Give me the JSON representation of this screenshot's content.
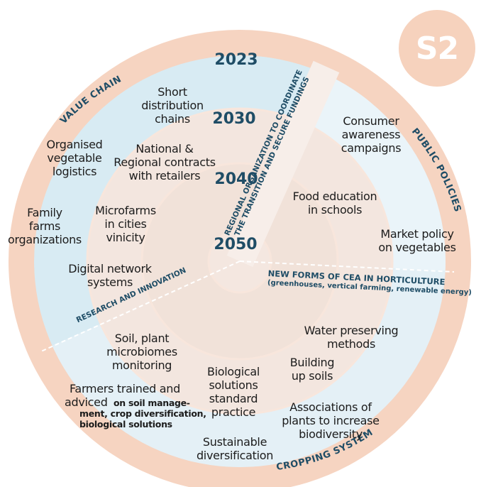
{
  "badge": "S2",
  "years": [
    "2023",
    "2030",
    "2040",
    "2050"
  ],
  "sectors": {
    "value_chain": "VALUE CHAIN",
    "public_policies": "PUBLIC POLICIES",
    "research": "RESEARCH AND INNOVATION",
    "cropping": "CROPPING SYSTEMS"
  },
  "regional_band": {
    "line1": "REGIONAL ORGANIZATION TO COORDINATE",
    "line2": "THE TRANSITION AND SECURE FUNDINGS"
  },
  "cea": {
    "title": "NEW FORMS OF CEA IN HORTICULTURE",
    "subtitle": "(greenhouses, vertical farming, renewable energy)"
  },
  "items": {
    "short_distribution": "Short\ndistribution\nchains",
    "organised_logistics": "Organised\nvegetable\nlogistics",
    "national_contracts": "National &\nRegional contracts\nwith retailers",
    "family_farms": "Family\nfarms\norganizations",
    "microfarms": "Microfarms\nin cities\nvinicity",
    "digital_network": "Digital network\nsystems",
    "consumer_awareness": "Consumer\nawareness\ncampaigns",
    "food_education": "Food education\nin schools",
    "market_policy": "Market policy\non vegetables",
    "soil_plant": "Soil, plant\nmicrobiomes\nmonitoring",
    "farmers_trained": "Farmers trained and",
    "advised": "adviced",
    "advised_detail": "on soil manage-\nment, crop diversification,\nbiological solutions",
    "biological_solutions": "Biological\nsolutions\nstandard\npractice",
    "water_preserving": "Water preserving\nmethods",
    "building_soils": "Building\nup soils",
    "associations": "Associations of\nplants to increase\nbiodiversity",
    "sustainable": "Sustainable\ndiversification"
  },
  "colors": {
    "outer_ring": "#f6d4c1",
    "quadrant_blue": "#d8ebf3",
    "quadrant_light": "#eaf4f9",
    "inner_beige": "#f4e4da",
    "ring_line": "#f8e6dc",
    "label_dark": "#1c1c1c",
    "accent_navy": "#1f4d66"
  }
}
